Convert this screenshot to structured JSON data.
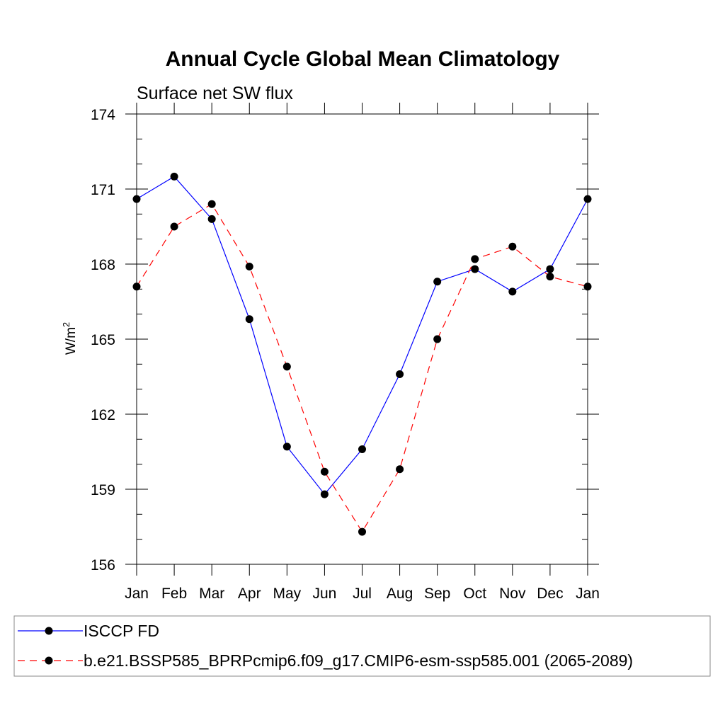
{
  "chart_data": {
    "type": "line",
    "title": "Annual Cycle Global Mean Climatology",
    "subtitle": "Surface net SW flux",
    "ylabel_base": "W/m",
    "ylabel_sup": "2",
    "xlabel": "",
    "x": [
      "Jan",
      "Feb",
      "Mar",
      "Apr",
      "May",
      "Jun",
      "Jul",
      "Aug",
      "Sep",
      "Oct",
      "Nov",
      "Dec",
      "Jan"
    ],
    "ylim": [
      156,
      174
    ],
    "yticks": [
      156,
      159,
      162,
      165,
      168,
      171,
      174
    ],
    "grid": false,
    "legend_placement": "bottom",
    "series": [
      {
        "name": "ISCCP FD",
        "color": "#0000ff",
        "dash": "solid",
        "marker": "filled-circle",
        "values": [
          170.6,
          171.5,
          169.8,
          165.8,
          160.7,
          158.8,
          160.6,
          163.6,
          167.3,
          167.8,
          166.9,
          167.8,
          170.6
        ]
      },
      {
        "name": "b.e21.BSSP585_BPRPcmip6.f09_g17.CMIP6-esm-ssp585.001 (2065-2089)",
        "color": "#ff0000",
        "dash": "dashed",
        "marker": "filled-circle",
        "values": [
          167.1,
          169.5,
          170.4,
          167.9,
          163.9,
          159.7,
          157.3,
          159.8,
          165.0,
          168.2,
          168.7,
          167.5,
          167.1
        ]
      }
    ]
  }
}
